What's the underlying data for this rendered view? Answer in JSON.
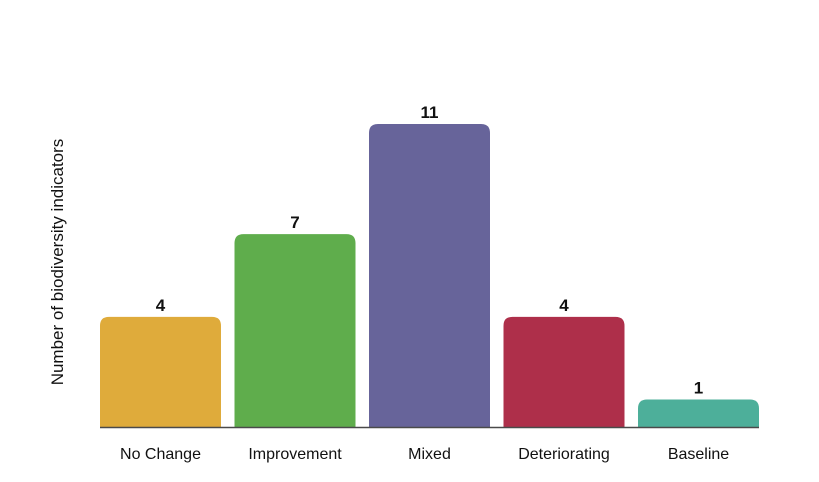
{
  "chart_data": {
    "type": "bar",
    "title": "",
    "xlabel": "",
    "ylabel": "Number of biodiversity indicators",
    "categories": [
      "No Change",
      "Improvement",
      "Mixed",
      "Deteriorating",
      "Baseline"
    ],
    "values": [
      4,
      7,
      11,
      4,
      1
    ],
    "data_labels": [
      "4",
      "7",
      "11",
      "4",
      "1"
    ],
    "colors": [
      "#dfab3b",
      "#5fad4c",
      "#67649a",
      "#ae2f4a",
      "#4daf9a"
    ],
    "axis_color": "#4a4a4a",
    "ylim": [
      0,
      11
    ],
    "grid": false,
    "legend": "none"
  }
}
